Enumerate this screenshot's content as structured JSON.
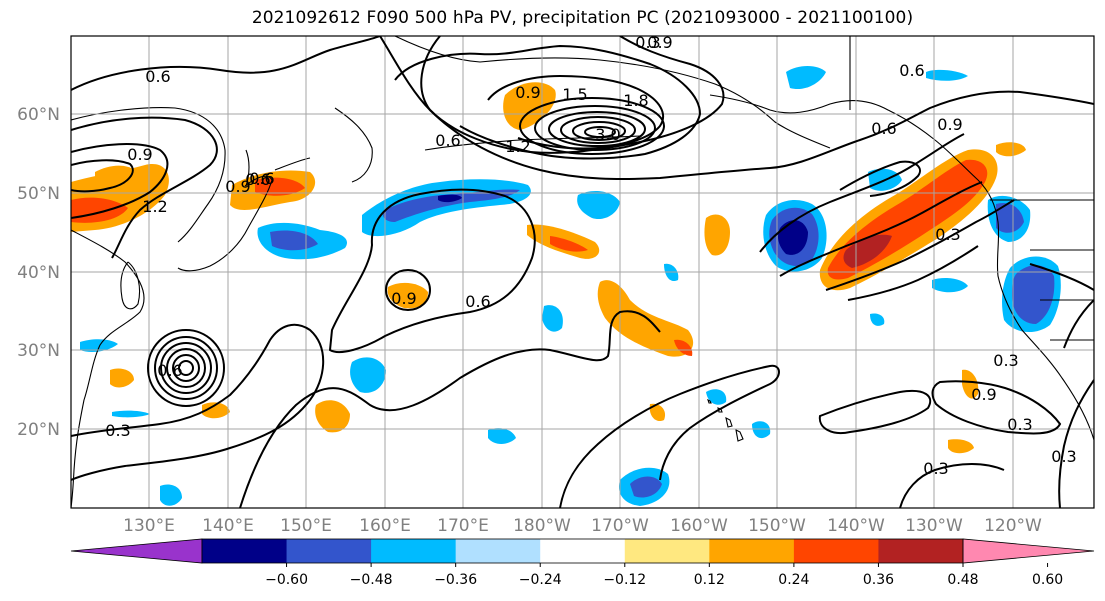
{
  "title": "2021092612 F090 500 hPa PV, precipitation PC (2021093000 - 2021100100)",
  "map": {
    "lat_ticks": [
      "60°N",
      "50°N",
      "40°N",
      "30°N",
      "20°N"
    ],
    "lon_ticks": [
      "130°E",
      "140°E",
      "150°E",
      "160°E",
      "170°E",
      "180°W",
      "170°W",
      "160°W",
      "150°W",
      "140°W",
      "130°W",
      "120°W"
    ],
    "contour_labels": [
      "0.6",
      "0.9",
      "1.2",
      "0.9",
      "0.6",
      "0.9",
      "1.5",
      "1.8",
      "3.0",
      "0.6",
      "1.2",
      "0.9",
      "0.6",
      "0.6",
      "0.9",
      "0.6",
      "0.6",
      "0.9",
      "0.3",
      "0.3",
      "0.9",
      "0.6",
      "0.3",
      "0.3",
      "0.3",
      "0.3",
      "0.3"
    ],
    "colors": {
      "land_outline": "#000000",
      "grid": "#a6a6a6",
      "tick_label": "#808080"
    }
  },
  "colorbar": {
    "colors": [
      "#9933cc",
      "#000088",
      "#3355cc",
      "#00bbff",
      "#b0e0ff",
      "#ffffff",
      "#ffe880",
      "#ffa500",
      "#ff4500",
      "#b22222",
      "#ff88b0"
    ],
    "tick_labels": [
      "−0.60",
      "−0.48",
      "−0.36",
      "−0.24",
      "−0.12",
      "0.12",
      "0.24",
      "0.36",
      "0.48",
      "0.60"
    ]
  }
}
